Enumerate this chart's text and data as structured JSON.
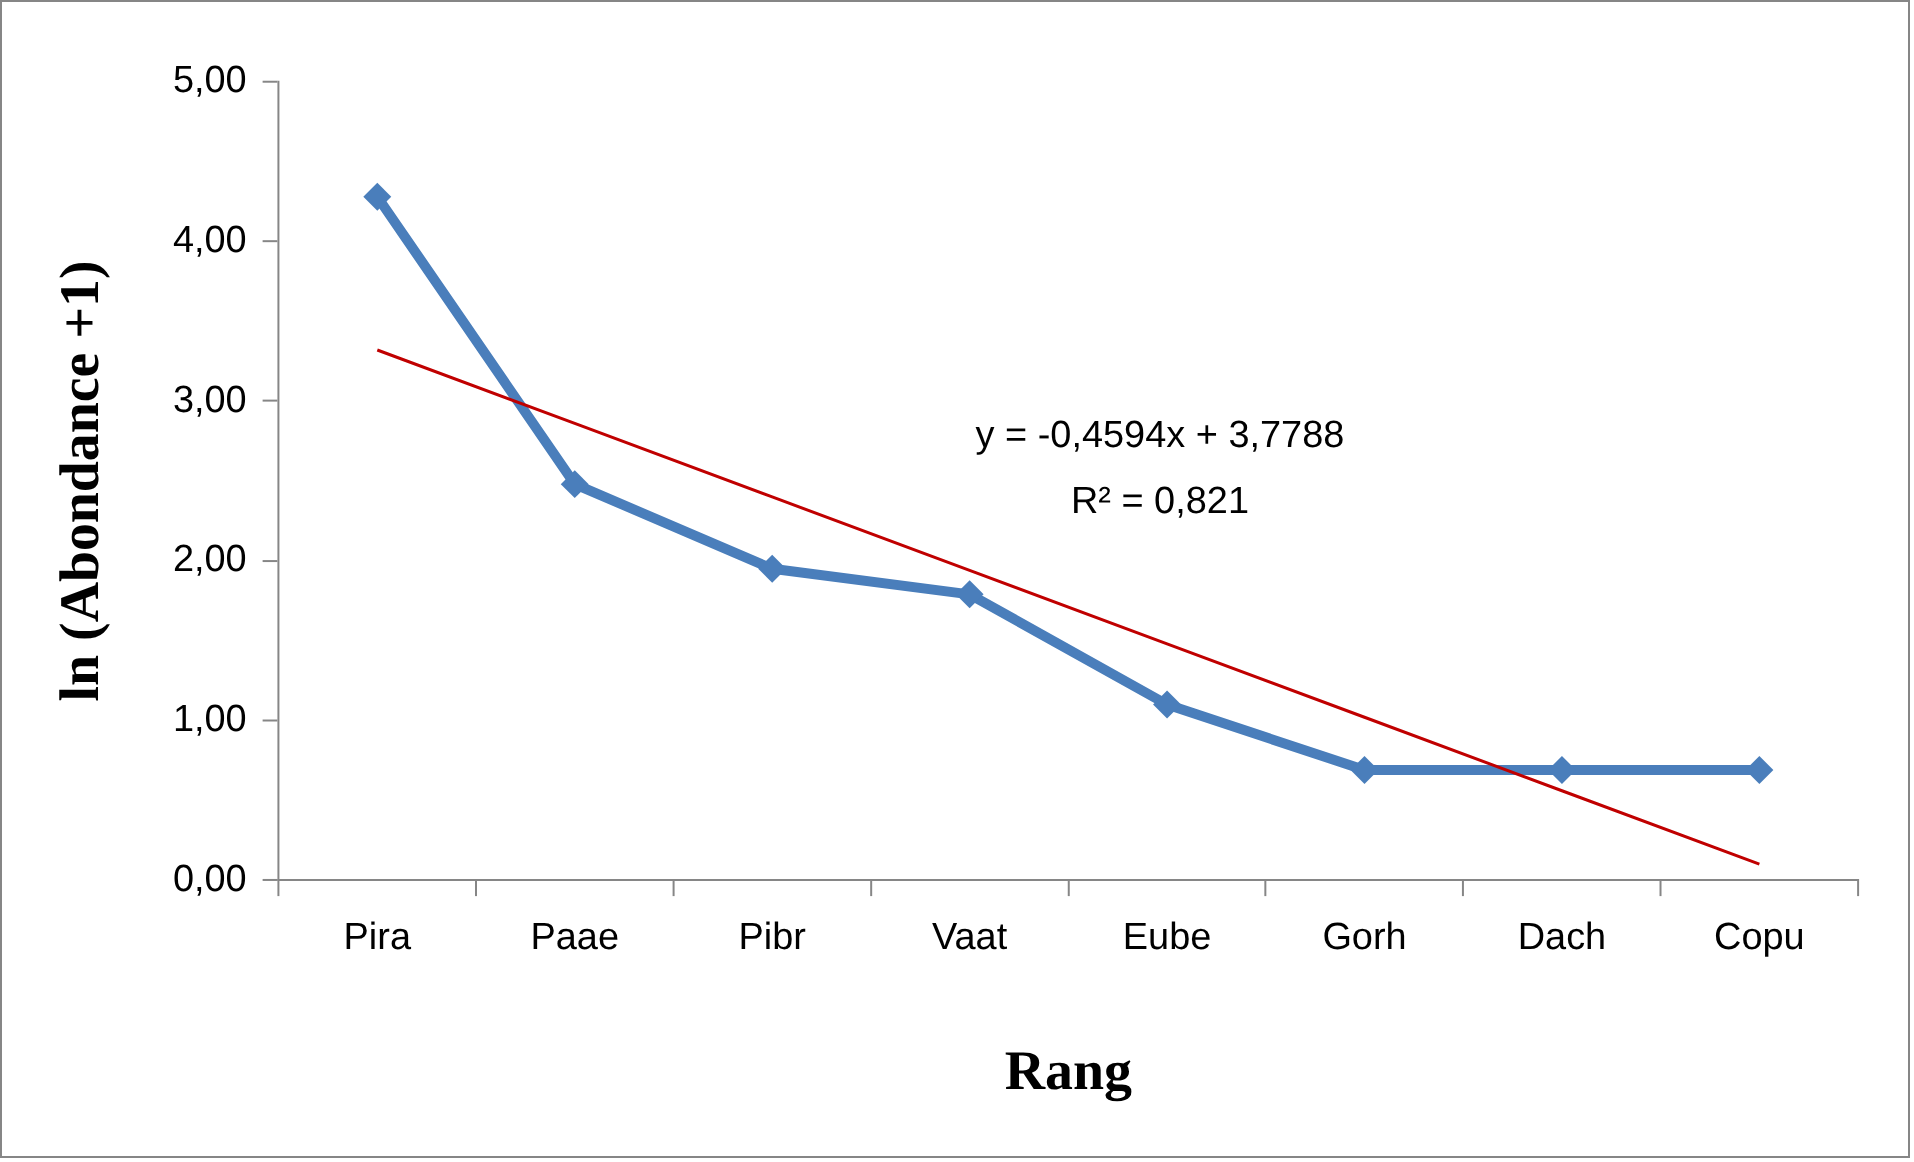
{
  "chart_data": {
    "type": "line",
    "xlabel": "Rang",
    "ylabel": "ln (Abondance +1)",
    "categories": [
      "Pira",
      "Paae",
      "Pibr",
      "Vaat",
      "Eube",
      "Gorh",
      "Dach",
      "Copu"
    ],
    "series": [
      {
        "color": "#4a7ebb",
        "marker": "diamond",
        "values": [
          4.28,
          2.48,
          1.95,
          1.79,
          1.1,
          0.69,
          0.69,
          0.69
        ]
      },
      {
        "color": "#c00000",
        "marker": "none",
        "values": [
          3.32,
          2.86,
          2.4,
          1.94,
          1.48,
          1.02,
          0.56,
          0.1
        ]
      }
    ],
    "ylim": [
      0,
      5
    ],
    "yticks": [
      {
        "value": 0,
        "label": "0,00"
      },
      {
        "value": 1,
        "label": "1,00"
      },
      {
        "value": 2,
        "label": "2,00"
      },
      {
        "value": 3,
        "label": "3,00"
      },
      {
        "value": 4,
        "label": "4,00"
      },
      {
        "value": 5,
        "label": "5,00"
      }
    ],
    "legend": false,
    "annotations": [
      "y = -0,4594x + 3,7788",
      "R² = 0,821"
    ]
  }
}
